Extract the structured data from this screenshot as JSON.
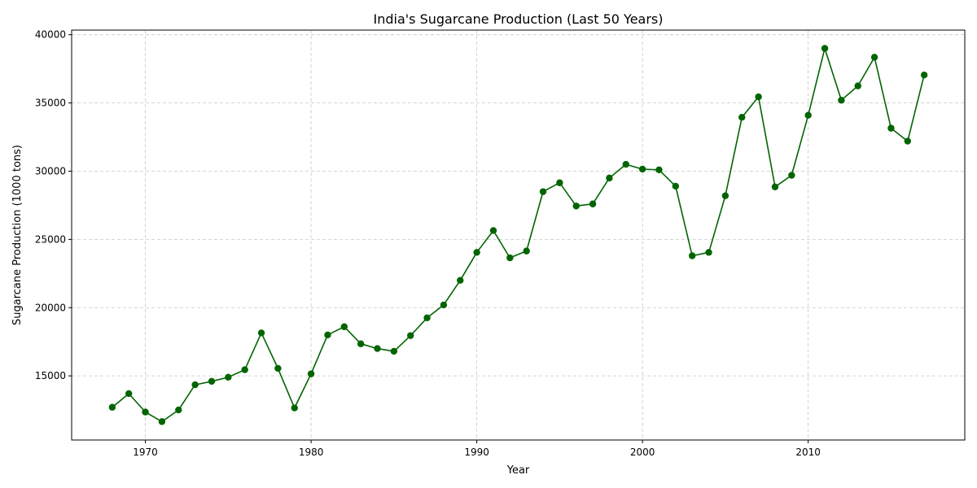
{
  "chart_data": {
    "type": "line",
    "title": "India's Sugarcane Production (Last 50 Years)",
    "xlabel": "Year",
    "ylabel": "Sugarcane Production (1000 tons)",
    "xlim": [
      1965.55,
      2019.45
    ],
    "ylim": [
      10300,
      40340
    ],
    "xticks": [
      1970,
      1980,
      1990,
      2000,
      2010
    ],
    "yticks": [
      15000,
      20000,
      25000,
      30000,
      35000,
      40000
    ],
    "grid": true,
    "legend": "none",
    "colors": {
      "series": "#006400",
      "grid": "#c8c8c8"
    },
    "series": [
      {
        "x": [
          1968,
          1969,
          1970,
          1971,
          1972,
          1973,
          1974,
          1975,
          1976,
          1977,
          1978,
          1979,
          1980,
          1981,
          1982,
          1983,
          1984,
          1985,
          1986,
          1987,
          1988,
          1989,
          1990,
          1991,
          1992,
          1993,
          1994,
          1995,
          1996,
          1997,
          1998,
          1999,
          2000,
          2001,
          2002,
          2003,
          2004,
          2005,
          2006,
          2007,
          2008,
          2009,
          2010,
          2011,
          2012,
          2013,
          2014,
          2015,
          2016,
          2017
        ],
        "values": [
          12700,
          13700,
          12350,
          11650,
          12500,
          14350,
          14600,
          14900,
          15450,
          18150,
          15550,
          12650,
          15150,
          18000,
          18600,
          17350,
          17000,
          16800,
          17950,
          19250,
          20200,
          22000,
          24050,
          25650,
          23650,
          24150,
          28500,
          29150,
          27450,
          27600,
          29500,
          30500,
          30150,
          30100,
          28900,
          23800,
          24050,
          28200,
          33950,
          35450,
          28850,
          29700,
          34100,
          39000,
          35200,
          36250,
          38350,
          33150,
          32200,
          37050
        ]
      }
    ]
  }
}
